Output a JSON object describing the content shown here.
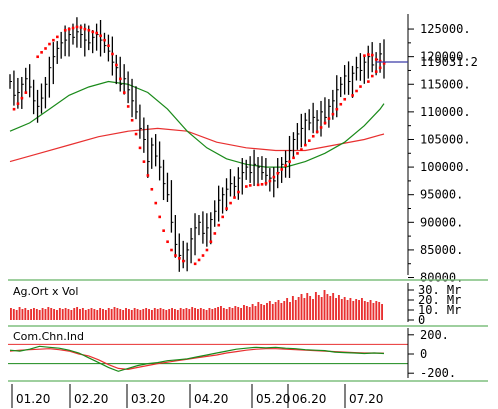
{
  "chart_data": {
    "type": "line",
    "colors": {
      "price_bars": "#000000",
      "parabolic_sar": "#ff0000",
      "ma_short": "#1a8a1a",
      "ma_long": "#e83030",
      "last_price_line": "#3b3ba8",
      "volume_bars": "#e83030",
      "separator": "#7fbf7f",
      "cci_main": "#1a8a1a",
      "cci_signal": "#e83030",
      "zero_line": "#e83030",
      "band_line": "#1a8a1a"
    },
    "price_axis": {
      "ylim": [
        81000,
        127000
      ],
      "ticks": [
        "125000.",
        "120000.",
        "115000.",
        "110000.",
        "105000.",
        "100000.",
        "95000.",
        "90000.",
        "85000.",
        "80000."
      ],
      "tick_values": [
        125000,
        120000,
        115000,
        110000,
        105000,
        100000,
        95000,
        90000,
        85000,
        80000
      ],
      "last_price_label": "119031.2",
      "last_price": 119031.2
    },
    "x_axis": {
      "months": [
        "01.20",
        "02.20",
        "03.20",
        "04.20",
        "05.20",
        "06.20",
        "07.20"
      ]
    },
    "price_series": {
      "close_points": [
        [
          0,
          115500
        ],
        [
          2,
          113000
        ],
        [
          4,
          113500
        ],
        [
          6,
          115000
        ],
        [
          8,
          116000
        ],
        [
          10,
          114500
        ],
        [
          12,
          112000
        ],
        [
          14,
          111000
        ],
        [
          16,
          112500
        ],
        [
          18,
          115000
        ],
        [
          20,
          118000
        ],
        [
          22,
          120000
        ],
        [
          24,
          121500
        ],
        [
          26,
          122500
        ],
        [
          28,
          123000
        ],
        [
          30,
          124000
        ],
        [
          32,
          123500
        ],
        [
          34,
          124500
        ],
        [
          36,
          124000
        ],
        [
          38,
          123000
        ],
        [
          40,
          122500
        ],
        [
          42,
          123500
        ],
        [
          44,
          124000
        ],
        [
          46,
          123000
        ],
        [
          48,
          122000
        ],
        [
          50,
          121000
        ],
        [
          52,
          119000
        ],
        [
          54,
          118000
        ],
        [
          56,
          115000
        ],
        [
          58,
          116000
        ],
        [
          60,
          114000
        ],
        [
          62,
          112000
        ],
        [
          64,
          110000
        ],
        [
          66,
          107000
        ],
        [
          68,
          105000
        ],
        [
          70,
          101000
        ],
        [
          72,
          104000
        ],
        [
          74,
          102000
        ],
        [
          76,
          100000
        ],
        [
          78,
          97000
        ],
        [
          80,
          95000
        ],
        [
          82,
          90000
        ],
        [
          84,
          86000
        ],
        [
          86,
          84000
        ],
        [
          88,
          83000
        ],
        [
          90,
          85000
        ],
        [
          92,
          87000
        ],
        [
          94,
          89000
        ],
        [
          96,
          90000
        ],
        [
          98,
          88000
        ],
        [
          100,
          89000
        ],
        [
          102,
          90500
        ],
        [
          104,
          92000
        ],
        [
          106,
          94000
        ],
        [
          108,
          95000
        ],
        [
          110,
          96000
        ],
        [
          112,
          97000
        ],
        [
          114,
          96500
        ],
        [
          116,
          98000
        ],
        [
          118,
          99000
        ],
        [
          120,
          100000
        ],
        [
          122,
          99000
        ],
        [
          124,
          100500
        ],
        [
          126,
          100000
        ],
        [
          128,
          99000
        ],
        [
          130,
          98500
        ],
        [
          132,
          98000
        ],
        [
          134,
          97500
        ],
        [
          136,
          99000
        ],
        [
          138,
          100500
        ],
        [
          140,
          101000
        ],
        [
          142,
          103000
        ],
        [
          144,
          105000
        ],
        [
          146,
          106000
        ],
        [
          148,
          107000
        ],
        [
          150,
          108500
        ],
        [
          152,
          108000
        ],
        [
          154,
          109000
        ],
        [
          156,
          108500
        ],
        [
          158,
          110000
        ],
        [
          160,
          109000
        ],
        [
          162,
          111000
        ],
        [
          164,
          112000
        ],
        [
          166,
          114000
        ],
        [
          168,
          115000
        ],
        [
          170,
          116500
        ],
        [
          172,
          115500
        ],
        [
          174,
          117000
        ],
        [
          176,
          118000
        ],
        [
          178,
          117500
        ],
        [
          180,
          119000
        ],
        [
          182,
          120000
        ],
        [
          184,
          118500
        ],
        [
          186,
          119500
        ],
        [
          188,
          120500
        ],
        [
          190,
          119000
        ]
      ],
      "bar_range": 2200
    },
    "sar_points": [
      [
        2,
        110500
      ],
      [
        4,
        111500
      ],
      [
        6,
        112500
      ],
      [
        8,
        113500
      ],
      [
        14,
        120000
      ],
      [
        16,
        120800
      ],
      [
        18,
        121500
      ],
      [
        20,
        122300
      ],
      [
        22,
        123000
      ],
      [
        24,
        123600
      ],
      [
        28,
        124800
      ],
      [
        30,
        125000
      ],
      [
        32,
        125200
      ],
      [
        34,
        125400
      ],
      [
        36,
        125300
      ],
      [
        38,
        125000
      ],
      [
        40,
        124800
      ],
      [
        42,
        124500
      ],
      [
        44,
        124300
      ],
      [
        46,
        123800
      ],
      [
        48,
        123000
      ],
      [
        50,
        122000
      ],
      [
        52,
        120500
      ],
      [
        54,
        118500
      ],
      [
        56,
        116000
      ],
      [
        58,
        113500
      ],
      [
        60,
        111000
      ],
      [
        62,
        108500
      ],
      [
        64,
        106000
      ],
      [
        66,
        103500
      ],
      [
        68,
        101000
      ],
      [
        70,
        98500
      ],
      [
        72,
        96000
      ],
      [
        74,
        93500
      ],
      [
        76,
        91000
      ],
      [
        78,
        88500
      ],
      [
        80,
        86500
      ],
      [
        82,
        85000
      ],
      [
        84,
        84000
      ],
      [
        86,
        83500
      ],
      [
        88,
        83000
      ],
      [
        94,
        82500
      ],
      [
        96,
        83200
      ],
      [
        98,
        84000
      ],
      [
        100,
        85000
      ],
      [
        102,
        86500
      ],
      [
        104,
        88000
      ],
      [
        106,
        89500
      ],
      [
        108,
        91000
      ],
      [
        110,
        92500
      ],
      [
        112,
        93500
      ],
      [
        114,
        94500
      ],
      [
        116,
        95500
      ],
      [
        120,
        96500
      ],
      [
        122,
        96700
      ],
      [
        126,
        96800
      ],
      [
        128,
        96900
      ],
      [
        130,
        97100
      ],
      [
        132,
        97500
      ],
      [
        134,
        98200
      ],
      [
        136,
        98900
      ],
      [
        138,
        99600
      ],
      [
        140,
        100300
      ],
      [
        142,
        101000
      ],
      [
        144,
        101700
      ],
      [
        146,
        102500
      ],
      [
        148,
        103200
      ],
      [
        150,
        104000
      ],
      [
        152,
        104800
      ],
      [
        154,
        105600
      ],
      [
        156,
        106400
      ],
      [
        158,
        107200
      ],
      [
        160,
        108000
      ],
      [
        162,
        108800
      ],
      [
        164,
        109600
      ],
      [
        166,
        110500
      ],
      [
        168,
        111400
      ],
      [
        170,
        112300
      ],
      [
        174,
        113000
      ],
      [
        176,
        113800
      ],
      [
        178,
        114600
      ],
      [
        182,
        115500
      ],
      [
        184,
        116500
      ],
      [
        186,
        117300
      ],
      [
        188,
        118000
      ],
      [
        190,
        118800
      ],
      [
        180,
        120200
      ],
      [
        182,
        120400
      ],
      [
        184,
        120300
      ],
      [
        186,
        119500
      ],
      [
        188,
        119200
      ]
    ],
    "ma_short_points": [
      [
        0,
        106500
      ],
      [
        10,
        108000
      ],
      [
        20,
        110500
      ],
      [
        30,
        113000
      ],
      [
        40,
        114500
      ],
      [
        50,
        115500
      ],
      [
        60,
        115000
      ],
      [
        70,
        113500
      ],
      [
        80,
        110500
      ],
      [
        90,
        106500
      ],
      [
        100,
        103500
      ],
      [
        110,
        101500
      ],
      [
        120,
        100500
      ],
      [
        130,
        100000
      ],
      [
        140,
        100000
      ],
      [
        150,
        101000
      ],
      [
        160,
        102500
      ],
      [
        170,
        104500
      ],
      [
        180,
        107500
      ],
      [
        188,
        110500
      ],
      [
        190,
        111500
      ]
    ],
    "ma_long_points": [
      [
        0,
        101000
      ],
      [
        15,
        102500
      ],
      [
        30,
        104000
      ],
      [
        45,
        105500
      ],
      [
        60,
        106500
      ],
      [
        75,
        107000
      ],
      [
        90,
        106500
      ],
      [
        105,
        104500
      ],
      [
        120,
        103500
      ],
      [
        135,
        103000
      ],
      [
        150,
        103000
      ],
      [
        165,
        104000
      ],
      [
        180,
        105000
      ],
      [
        190,
        106000
      ]
    ],
    "volume_panel": {
      "title": "Ag.Ort x Vol",
      "ticks": [
        "30. Mr",
        "20. Mr",
        "10. Mr",
        "0"
      ],
      "tick_values": [
        30,
        20,
        10,
        0
      ],
      "unit": "Mr",
      "ylim": [
        0,
        34
      ],
      "values": [
        12,
        11,
        10,
        13,
        11,
        12,
        10,
        11,
        12,
        11,
        10,
        12,
        11,
        13,
        12,
        11,
        10,
        12,
        11,
        12,
        11,
        10,
        12,
        13,
        11,
        12,
        10,
        11,
        12,
        11,
        10,
        12,
        11,
        10,
        12,
        11,
        13,
        12,
        11,
        10,
        12,
        11,
        10,
        12,
        11,
        10,
        11,
        12,
        11,
        10,
        12,
        11,
        12,
        11,
        10,
        11,
        12,
        11,
        10,
        12,
        11,
        12,
        11,
        13,
        12,
        11,
        12,
        11,
        10,
        12,
        11,
        12,
        13,
        14,
        12,
        11,
        13,
        12,
        14,
        13,
        12,
        15,
        14,
        13,
        16,
        14,
        18,
        16,
        15,
        17,
        19,
        16,
        18,
        20,
        17,
        19,
        22,
        18,
        24,
        20,
        23,
        26,
        22,
        27,
        24,
        21,
        28,
        25,
        23,
        30,
        26,
        24,
        27,
        22,
        25,
        21,
        23,
        20,
        22,
        19,
        21,
        20,
        22,
        19,
        18,
        20,
        17,
        19,
        18,
        16
      ]
    },
    "cci_panel": {
      "title": "Com.Chn.Ind",
      "ticks": [
        "200.",
        "0",
        "-200."
      ],
      "tick_values": [
        200,
        0,
        -200
      ],
      "ylim": [
        -250,
        250
      ],
      "upper_band": 100,
      "lower_band": -100,
      "main_points": [
        [
          0,
          40
        ],
        [
          5,
          30
        ],
        [
          10,
          50
        ],
        [
          15,
          80
        ],
        [
          20,
          70
        ],
        [
          25,
          60
        ],
        [
          30,
          40
        ],
        [
          35,
          10
        ],
        [
          40,
          -40
        ],
        [
          45,
          -90
        ],
        [
          50,
          -140
        ],
        [
          55,
          -180
        ],
        [
          60,
          -150
        ],
        [
          65,
          -120
        ],
        [
          70,
          -100
        ],
        [
          75,
          -90
        ],
        [
          80,
          -70
        ],
        [
          85,
          -60
        ],
        [
          90,
          -50
        ],
        [
          95,
          -30
        ],
        [
          100,
          -10
        ],
        [
          105,
          10
        ],
        [
          110,
          30
        ],
        [
          115,
          50
        ],
        [
          120,
          60
        ],
        [
          125,
          70
        ],
        [
          130,
          65
        ],
        [
          135,
          70
        ],
        [
          140,
          60
        ],
        [
          145,
          55
        ],
        [
          150,
          45
        ],
        [
          155,
          40
        ],
        [
          160,
          35
        ],
        [
          165,
          20
        ],
        [
          170,
          15
        ],
        [
          175,
          10
        ],
        [
          180,
          5
        ],
        [
          185,
          10
        ],
        [
          190,
          5
        ]
      ],
      "signal_points": [
        [
          0,
          30
        ],
        [
          5,
          40
        ],
        [
          10,
          45
        ],
        [
          15,
          50
        ],
        [
          20,
          55
        ],
        [
          25,
          45
        ],
        [
          30,
          30
        ],
        [
          35,
          0
        ],
        [
          40,
          -20
        ],
        [
          45,
          -60
        ],
        [
          50,
          -110
        ],
        [
          55,
          -150
        ],
        [
          60,
          -160
        ],
        [
          65,
          -140
        ],
        [
          70,
          -120
        ],
        [
          75,
          -100
        ],
        [
          80,
          -85
        ],
        [
          85,
          -70
        ],
        [
          90,
          -55
        ],
        [
          95,
          -40
        ],
        [
          100,
          -25
        ],
        [
          105,
          -10
        ],
        [
          110,
          10
        ],
        [
          115,
          25
        ],
        [
          120,
          40
        ],
        [
          125,
          50
        ],
        [
          130,
          55
        ],
        [
          135,
          55
        ],
        [
          140,
          50
        ],
        [
          145,
          45
        ],
        [
          150,
          40
        ],
        [
          155,
          35
        ],
        [
          160,
          30
        ],
        [
          165,
          25
        ],
        [
          170,
          20
        ],
        [
          175,
          15
        ],
        [
          180,
          10
        ],
        [
          185,
          10
        ],
        [
          190,
          8
        ]
      ]
    }
  }
}
